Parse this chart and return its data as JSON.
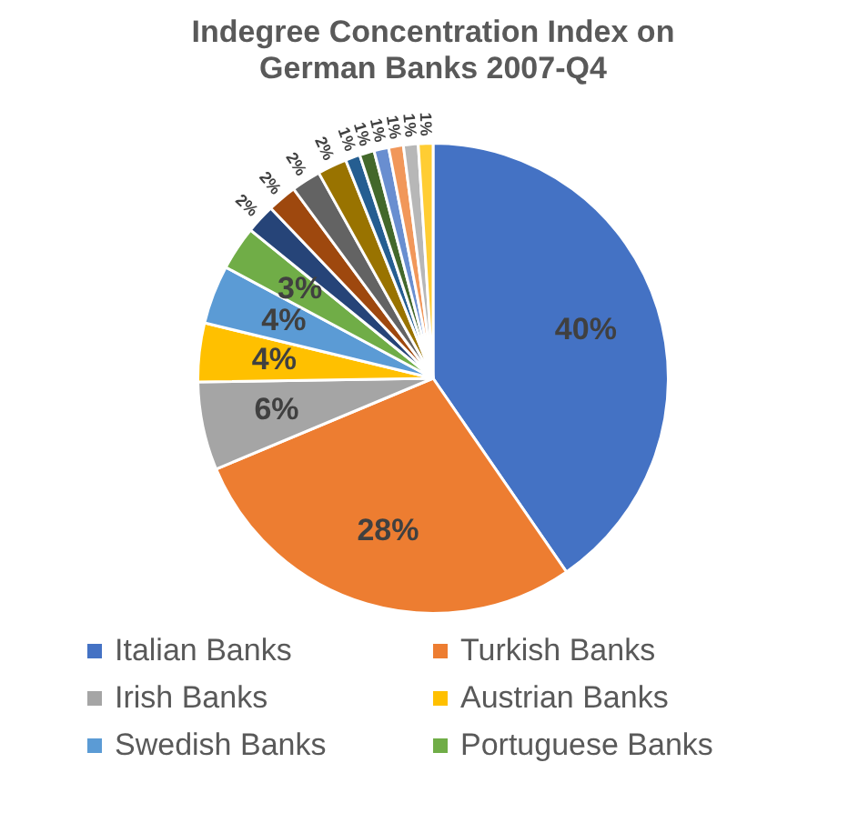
{
  "chart_data": {
    "type": "pie",
    "title": "Indegree Concentration Index on German Banks 2007-Q4",
    "categories": [
      "Italian Banks",
      "Turkish Banks",
      "Irish Banks",
      "Austrian Banks",
      "Swedish Banks",
      "Portuguese Banks",
      null,
      null,
      null,
      null,
      null,
      null,
      null,
      null,
      null,
      null
    ],
    "values": [
      40,
      28,
      6,
      4,
      4,
      3,
      2,
      2,
      2,
      2,
      1,
      1,
      1,
      1,
      1,
      1
    ],
    "colors": [
      "#4472c4",
      "#ed7d31",
      "#a5a5a5",
      "#ffc000",
      "#5b9bd5",
      "#70ad47",
      "#264478",
      "#9e480e",
      "#636363",
      "#997300",
      "#255e91",
      "#43682b",
      "#698ed0",
      "#f1975a",
      "#b7b7b7",
      "#ffcd33"
    ],
    "value_labels": [
      "40%",
      "28%",
      "6%",
      "4%",
      "4%",
      "3%",
      "2%",
      "2%",
      "2%",
      "2%",
      "1%",
      "1%",
      "1%",
      "1%",
      "1%",
      "1%"
    ],
    "legend": "bottom"
  }
}
